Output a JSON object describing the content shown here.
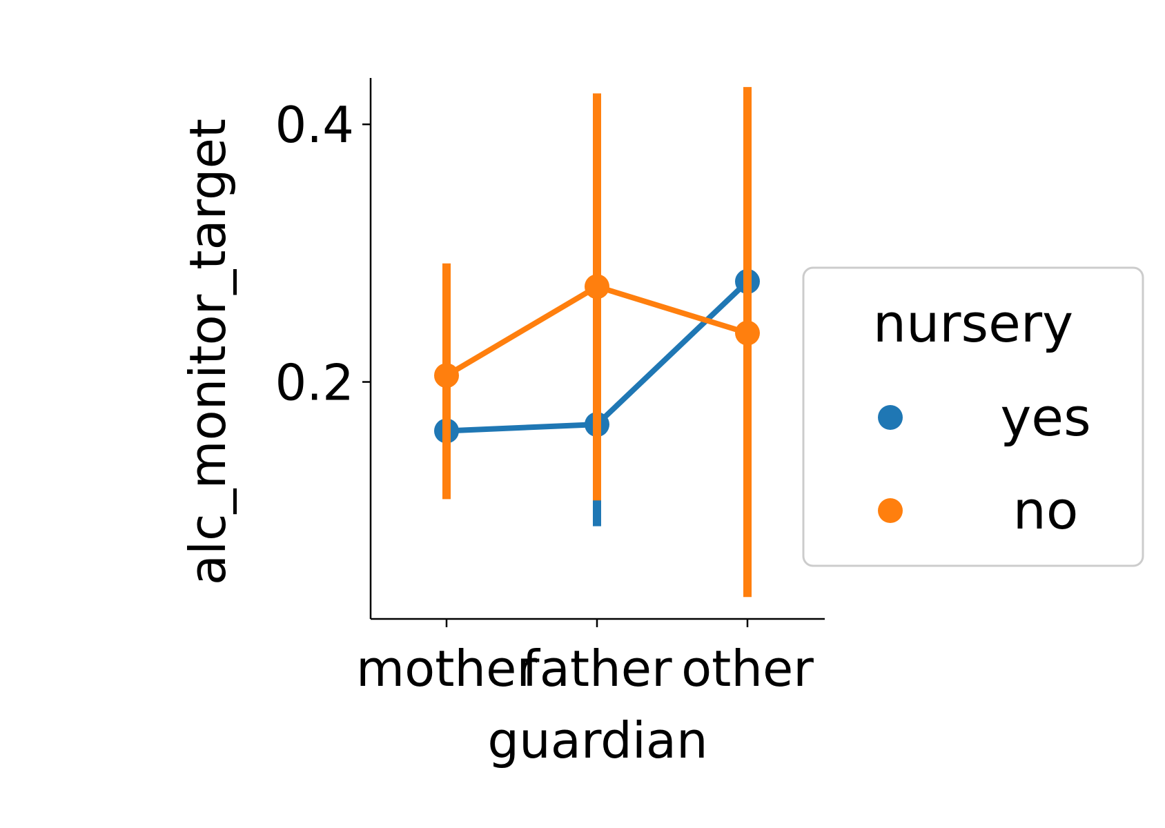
{
  "chart_data": {
    "type": "line",
    "title": "",
    "xlabel": "guardian",
    "ylabel": "alc_monitor_target",
    "categories": [
      "mother",
      "father",
      "other"
    ],
    "ylim": [
      0.016,
      0.436
    ],
    "yticks": [
      0.2,
      0.4
    ],
    "grid": false,
    "legend": {
      "title": "nursery",
      "placement": "center-right, outside plot"
    },
    "series": [
      {
        "name": "yes",
        "color": "#1f77b4",
        "values": [
          0.162,
          0.167,
          0.278
        ],
        "ci_low": [
          null,
          0.088,
          0.112
        ],
        "ci_high": [
          null,
          0.245,
          0.388
        ]
      },
      {
        "name": "no",
        "color": "#ff7f0e",
        "values": [
          0.205,
          0.274,
          0.238
        ],
        "ci_low": [
          0.109,
          0.108,
          0.033
        ],
        "ci_high": [
          0.292,
          0.424,
          0.429
        ]
      }
    ]
  }
}
